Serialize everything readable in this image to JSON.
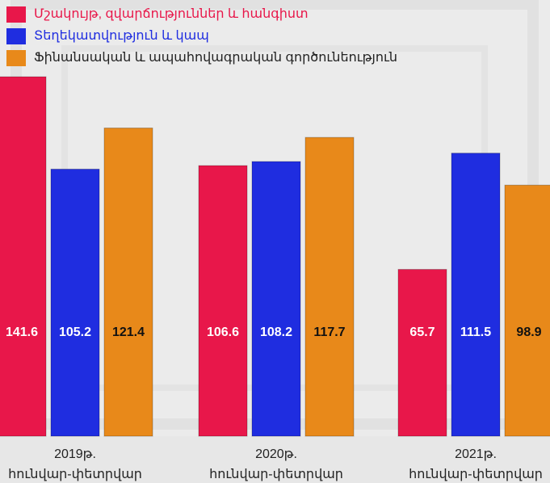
{
  "chart_data": {
    "type": "bar",
    "categories": [
      [
        "2019թ.",
        "հունվար-փետրվար"
      ],
      [
        "2020թ.",
        "հունվար-փետրվար"
      ],
      [
        "2021թ.",
        "հունվար-փետրվար"
      ]
    ],
    "series": [
      {
        "name": "Մշակույթ, զվարճություններ և հանգիստ",
        "color": "#e8174a",
        "values": [
          141.6,
          106.6,
          65.7
        ]
      },
      {
        "name": "Տեղեկատվություն և կապ",
        "color": "#1f2de0",
        "values": [
          105.2,
          108.2,
          111.5
        ]
      },
      {
        "name": "Ֆինանսական և ապահովագրական գործունեություն",
        "color": "#e8891a",
        "values": [
          121.4,
          117.7,
          98.9
        ]
      }
    ]
  }
}
